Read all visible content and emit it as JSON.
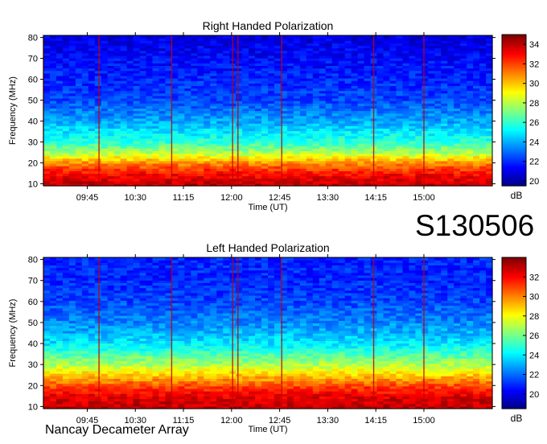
{
  "dataset_id": "S130506",
  "footer": "Nancay Decameter Array",
  "chart_data": [
    {
      "type": "heatmap",
      "title": "Right Handed Polarization",
      "xlabel": "Time (UT)",
      "ylabel": "Frequency (MHz)",
      "x_ticks": [
        "09:45",
        "10:30",
        "11:15",
        "12:00",
        "12:45",
        "13:30",
        "14:15",
        "15:00"
      ],
      "x_range": [
        "09:04",
        "16:04"
      ],
      "y_ticks": [
        10,
        20,
        30,
        40,
        50,
        60,
        70,
        80
      ],
      "ylim": [
        9,
        81
      ],
      "colorbar": {
        "label": "dB",
        "ticks": [
          20,
          22,
          24,
          26,
          28,
          30,
          32,
          34
        ],
        "range": [
          19.5,
          35
        ]
      },
      "colormap": "jet",
      "intensity_profile_db": [
        {
          "freq": 10,
          "db": 34
        },
        {
          "freq": 15,
          "db": 33
        },
        {
          "freq": 20,
          "db": 31
        },
        {
          "freq": 25,
          "db": 28
        },
        {
          "freq": 30,
          "db": 26
        },
        {
          "freq": 40,
          "db": 24
        },
        {
          "freq": 50,
          "db": 22.5
        },
        {
          "freq": 60,
          "db": 22
        },
        {
          "freq": 70,
          "db": 21.5
        },
        {
          "freq": 80,
          "db": 21
        }
      ],
      "vertical_bursts_ut": [
        "09:04",
        "09:56",
        "11:04",
        "12:01",
        "12:06",
        "12:47",
        "14:13",
        "15:00"
      ],
      "grid": true
    },
    {
      "type": "heatmap",
      "title": "Left Handed Polarization",
      "xlabel": "Time (UT)",
      "ylabel": "Frequency (MHz)",
      "x_ticks": [
        "09:45",
        "10:30",
        "11:15",
        "12:00",
        "12:45",
        "13:30",
        "14:15",
        "15:00"
      ],
      "x_range": [
        "09:04",
        "16:04"
      ],
      "y_ticks": [
        10,
        20,
        30,
        40,
        50,
        60,
        70,
        80
      ],
      "ylim": [
        9,
        81
      ],
      "colorbar": {
        "label": "dB",
        "ticks": [
          20,
          22,
          24,
          26,
          28,
          30,
          32
        ],
        "range": [
          18.5,
          34
        ]
      },
      "colormap": "jet",
      "intensity_profile_db": [
        {
          "freq": 10,
          "db": 33
        },
        {
          "freq": 15,
          "db": 32.5
        },
        {
          "freq": 20,
          "db": 31
        },
        {
          "freq": 25,
          "db": 29
        },
        {
          "freq": 30,
          "db": 27
        },
        {
          "freq": 40,
          "db": 24
        },
        {
          "freq": 50,
          "db": 22.5
        },
        {
          "freq": 60,
          "db": 21.5
        },
        {
          "freq": 70,
          "db": 21
        },
        {
          "freq": 80,
          "db": 21
        }
      ],
      "vertical_bursts_ut": [
        "09:04",
        "09:56",
        "11:04",
        "12:01",
        "12:06",
        "12:47",
        "14:13",
        "15:00"
      ],
      "grid": true
    }
  ]
}
